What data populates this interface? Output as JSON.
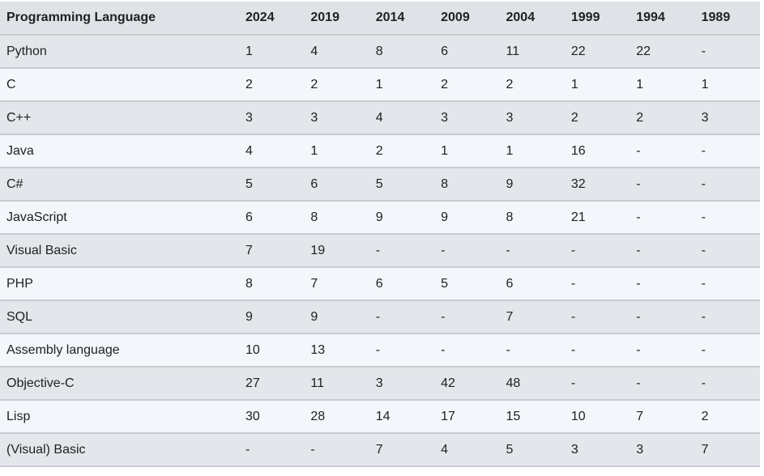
{
  "table": {
    "header": [
      "Programming Language",
      "2024",
      "2019",
      "2014",
      "2009",
      "2004",
      "1999",
      "1994",
      "1989"
    ],
    "rows": [
      [
        "Python",
        "1",
        "4",
        "8",
        "6",
        "11",
        "22",
        "22",
        "-"
      ],
      [
        "C",
        "2",
        "2",
        "1",
        "2",
        "2",
        "1",
        "1",
        "1"
      ],
      [
        "C++",
        "3",
        "3",
        "4",
        "3",
        "3",
        "2",
        "2",
        "3"
      ],
      [
        "Java",
        "4",
        "1",
        "2",
        "1",
        "1",
        "16",
        "-",
        "-"
      ],
      [
        "C#",
        "5",
        "6",
        "5",
        "8",
        "9",
        "32",
        "-",
        "-"
      ],
      [
        "JavaScript",
        "6",
        "8",
        "9",
        "9",
        "8",
        "21",
        "-",
        "-"
      ],
      [
        "Visual Basic",
        "7",
        "19",
        "-",
        "-",
        "-",
        "-",
        "-",
        "-"
      ],
      [
        "PHP",
        "8",
        "7",
        "6",
        "5",
        "6",
        "-",
        "-",
        "-"
      ],
      [
        "SQL",
        "9",
        "9",
        "-",
        "-",
        "7",
        "-",
        "-",
        "-"
      ],
      [
        "Assembly language",
        "10",
        "13",
        "-",
        "-",
        "-",
        "-",
        "-",
        "-"
      ],
      [
        "Objective-C",
        "27",
        "11",
        "3",
        "42",
        "48",
        "-",
        "-",
        "-"
      ],
      [
        "Lisp",
        "30",
        "28",
        "14",
        "17",
        "15",
        "10",
        "7",
        "2"
      ],
      [
        "(Visual) Basic",
        "-",
        "-",
        "7",
        "4",
        "5",
        "3",
        "3",
        "7"
      ]
    ]
  }
}
